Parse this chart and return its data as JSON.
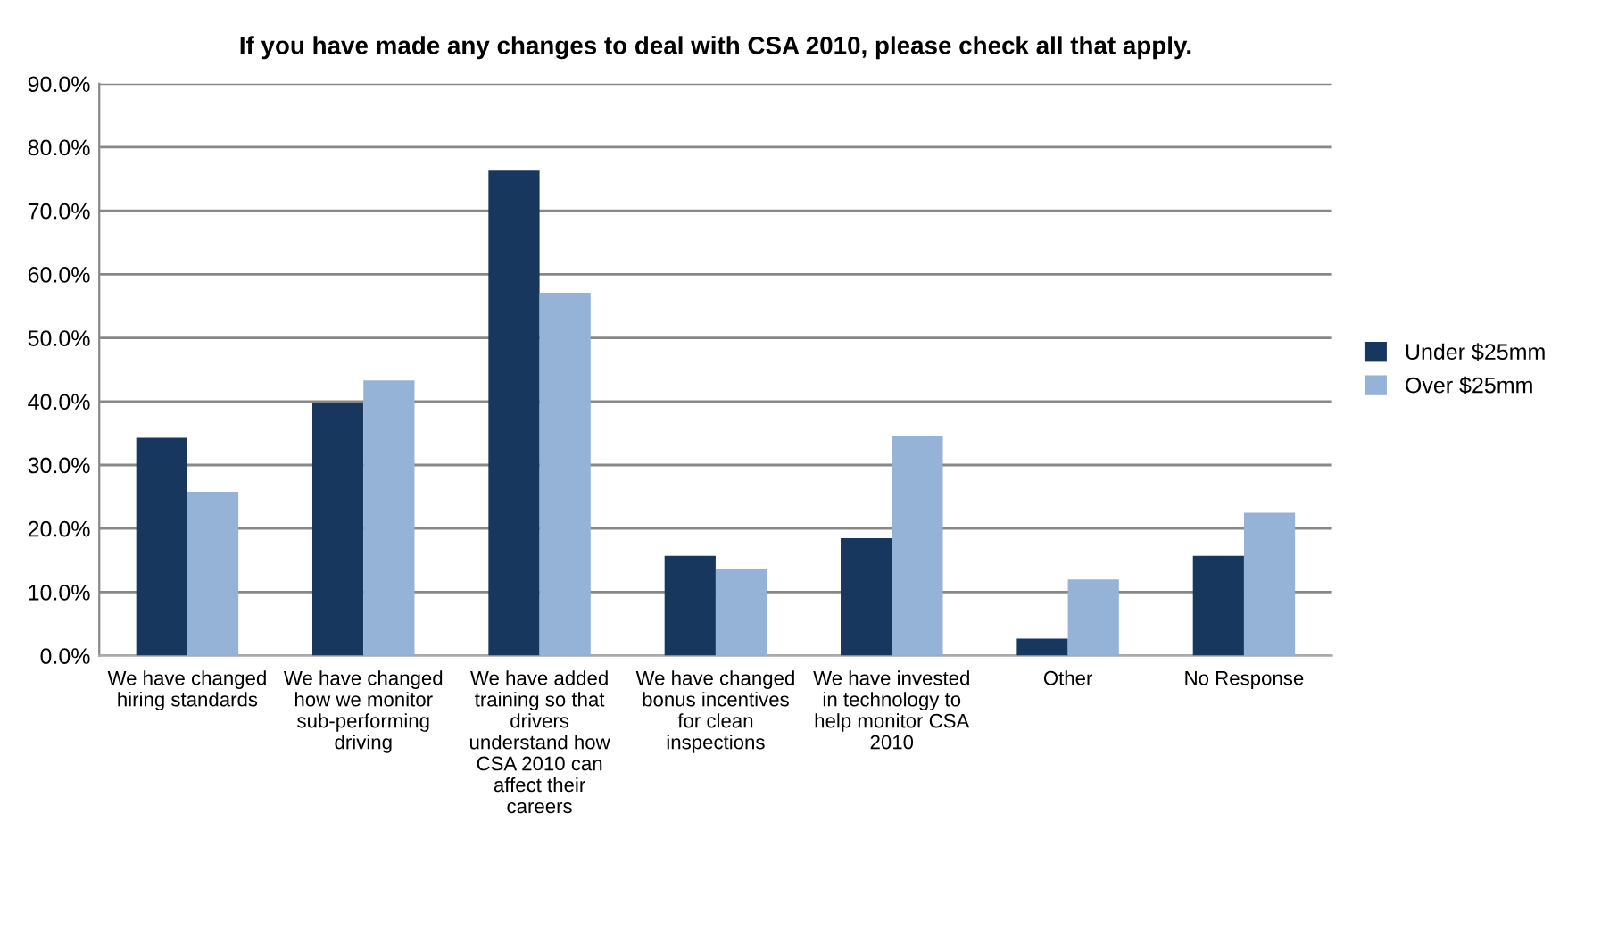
{
  "chart_data": {
    "type": "bar",
    "title": "If you have made any changes to deal with CSA 2010, please check all that apply.",
    "categories": [
      "We have changed\nhiring standards",
      "We have changed\nhow we monitor\nsub-performing\ndriving",
      "We have added\ntraining so that\ndrivers\nunderstand how\nCSA 2010 can\naffect their\ncareers",
      "We have changed\nbonus incentives\nfor clean\ninspections",
      "We have invested\nin technology to\nhelp monitor CSA\n2010",
      "Other",
      "No Response"
    ],
    "series": [
      {
        "name": "Under $25mm",
        "color": "#17375e",
        "values": [
          34.3,
          39.7,
          76.3,
          15.7,
          18.5,
          2.7,
          15.7
        ]
      },
      {
        "name": "Over $25mm",
        "color": "#95b3d7",
        "values": [
          25.8,
          43.3,
          57.1,
          13.7,
          34.6,
          12.0,
          22.5
        ]
      }
    ],
    "ylim": [
      0,
      90
    ],
    "yticks": [
      {
        "value": 0,
        "label": "0.0%"
      },
      {
        "value": 10,
        "label": "10.0%"
      },
      {
        "value": 20,
        "label": "20.0%"
      },
      {
        "value": 30,
        "label": "30.0%"
      },
      {
        "value": 40,
        "label": "40.0%"
      },
      {
        "value": 50,
        "label": "50.0%"
      },
      {
        "value": 60,
        "label": "60.0%"
      },
      {
        "value": 70,
        "label": "70.0%"
      },
      {
        "value": 80,
        "label": "80.0%"
      },
      {
        "value": 90,
        "label": "90.0%"
      }
    ],
    "grid": "y",
    "legend": "right"
  }
}
